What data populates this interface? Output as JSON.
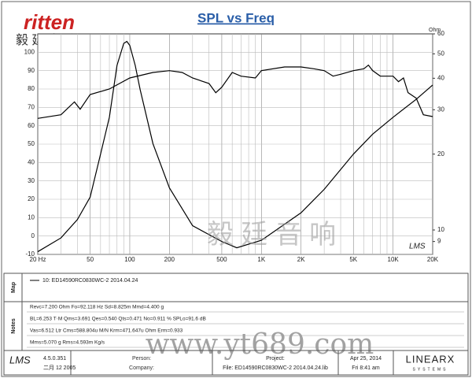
{
  "logo": {
    "brand": "ritten",
    "chinese": "毅 廷 音 响"
  },
  "chart_data": {
    "type": "line",
    "title": "SPL vs Freq",
    "xscale": "log",
    "y2scale": "log",
    "xlim": [
      20,
      20000
    ],
    "xticks": [
      {
        "value": 20,
        "label": "20 Hz"
      },
      50,
      100,
      200,
      500,
      {
        "value": 1000,
        "label": "1K"
      },
      {
        "value": 2000,
        "label": "2K"
      },
      {
        "value": 5000,
        "label": "5K"
      },
      {
        "value": 10000,
        "label": "10K"
      },
      {
        "value": 20000,
        "label": "20K"
      }
    ],
    "xminorticks": [
      30,
      40,
      60,
      70,
      80,
      90,
      300,
      400,
      600,
      700,
      800,
      900,
      3000,
      4000,
      6000,
      7000,
      8000,
      9000
    ],
    "ylim": [
      -10,
      110
    ],
    "yticks": [
      -10,
      0,
      10,
      20,
      30,
      40,
      50,
      60,
      70,
      80,
      90,
      100
    ],
    "y2label": "Ohm",
    "y2lim": [
      8,
      60
    ],
    "y2ticks": [
      9,
      10,
      20,
      30,
      40,
      50,
      60
    ],
    "grid": true,
    "series": [
      {
        "color": "#000000",
        "axis": "y",
        "x": [
          20,
          30,
          38,
          42,
          50,
          70,
          100,
          150,
          200,
          250,
          300,
          400,
          450,
          500,
          600,
          700,
          900,
          1000,
          1500,
          2000,
          2500,
          3000,
          3500,
          4000,
          5000,
          6000,
          6500,
          7000,
          8000,
          10000,
          11000,
          12000,
          13000,
          15000,
          17000,
          20000
        ],
        "values": [
          64,
          66,
          73,
          69,
          77,
          80,
          86,
          89,
          90,
          89,
          86,
          83,
          78,
          81,
          89,
          87,
          86,
          90,
          92,
          92,
          91,
          90,
          87,
          88,
          90,
          91,
          93,
          90,
          87,
          87,
          84,
          86,
          78,
          75,
          66,
          65
        ]
      },
      {
        "color": "#000000",
        "axis": "y2",
        "x": [
          20,
          30,
          40,
          50,
          60,
          70,
          80,
          90,
          95,
          100,
          110,
          120,
          150,
          200,
          300,
          500,
          650,
          1000,
          2000,
          3000,
          5000,
          7000,
          10000,
          15000,
          20000
        ],
        "values": [
          8.2,
          9.3,
          11,
          13.5,
          20,
          28,
          45,
          55,
          56,
          54,
          45,
          36,
          22,
          14.7,
          10.4,
          9,
          8.5,
          9.1,
          11.7,
          14.5,
          20,
          24,
          28,
          33,
          37.6
        ]
      }
    ]
  },
  "plot_badge": "LMS",
  "watermark": {
    "chinese": "毅 廷 音 响",
    "url": "www.yt689.com"
  },
  "map": {
    "label": "Map",
    "legend": "10: ED14590RC0830WC-2  2014.04.24"
  },
  "notes": {
    "label": "Notes",
    "lines": [
      "Revc=7.200 Ohm  Fo=92.118 Hz  Sd=8.825m  Mmd=4.400 g",
      "BL=6.253 T·M  Qms=3.691  Qes=0.540  Qts=0.471  No=0.911 %  SPLo=91.6 dB",
      "Vas=6.512 Ltr  Cms=588.804u M/N  Krm=471.647u Ohm  Erm=0.933",
      "Mms=5.070 g  Rms=4.593m Kg/s"
    ]
  },
  "footer": {
    "logo": "LMS",
    "version": "4.5.0.351",
    "build": "二月 12 2005",
    "person": "Person:",
    "company": "Company:",
    "project": "Project:",
    "file": "File: ED14590RC0830WC-2 2014.04.24.lib",
    "date": "Apr 25, 2014",
    "time": "Fri  8:41 am",
    "brand": "LINEARX",
    "brand_sub": "SYSTEMS"
  }
}
